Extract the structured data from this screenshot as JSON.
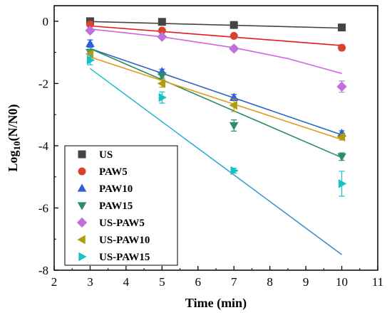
{
  "chart_data": {
    "type": "scatter",
    "title": "",
    "xlabel": "Time (min)",
    "ylabel": "Log10(N/N0)",
    "ylabel_main": "Log",
    "ylabel_sub": "10",
    "ylabel_rest": "(N/N0)",
    "xlim": [
      2,
      11
    ],
    "ylim": [
      -8,
      0.5
    ],
    "xticks": [
      "2",
      "3",
      "4",
      "5",
      "6",
      "7",
      "8",
      "9",
      "10",
      "11"
    ],
    "yticks": [
      "0",
      "-2",
      "-4",
      "-6",
      "-8"
    ],
    "grid": false,
    "legend_position": "bottom-left",
    "series": [
      {
        "name": "US",
        "color": "#444444",
        "marker": "square",
        "x": [
          3,
          5,
          7,
          10
        ],
        "y": [
          0,
          -0.02,
          -0.12,
          -0.2
        ],
        "err": [
          0.04,
          0.04,
          0.05,
          0.05
        ],
        "fit": {
          "x": [
            3,
            10
          ],
          "y": [
            -0.01,
            -0.22
          ]
        }
      },
      {
        "name": "PAW5",
        "color": "#d8422e",
        "marker": "circle",
        "x": [
          3,
          5,
          7,
          10
        ],
        "y": [
          -0.1,
          -0.3,
          -0.47,
          -0.85
        ],
        "err": [
          0.05,
          0.05,
          0.06,
          0.09
        ],
        "fit": {
          "x": [
            3,
            10
          ],
          "y": [
            -0.15,
            -0.78
          ]
        },
        "fit_color": "#e41a1c"
      },
      {
        "name": "PAW10",
        "color": "#2f5fd9",
        "marker": "triangle-up",
        "x": [
          3,
          5,
          7,
          10
        ],
        "y": [
          -0.72,
          -1.62,
          -2.45,
          -3.6
        ],
        "err": [
          0.12,
          0.08,
          0.1,
          0.08
        ],
        "fit": {
          "x": [
            3,
            10
          ],
          "y": [
            -0.88,
            -3.65
          ]
        },
        "fit_color": "#2b63c6"
      },
      {
        "name": "PAW15",
        "color": "#2f8c6b",
        "marker": "triangle-down",
        "x": [
          3,
          5,
          7,
          10
        ],
        "y": [
          -1.0,
          -1.75,
          -3.35,
          -4.35
        ],
        "err": [
          0.1,
          0.08,
          0.18,
          0.12
        ],
        "fit": {
          "x": [
            3,
            10
          ],
          "y": [
            -0.88,
            -4.38
          ]
        },
        "fit_color": "#2e8b57"
      },
      {
        "name": "US-PAW5",
        "color": "#c070dc",
        "marker": "diamond",
        "x": [
          3,
          5,
          7,
          10
        ],
        "y": [
          -0.3,
          -0.5,
          -0.88,
          -2.1
        ],
        "err": [
          0.05,
          0.06,
          0.08,
          0.18
        ],
        "fit": {
          "type": "curve",
          "x": [
            3,
            5,
            7,
            8.5,
            10
          ],
          "y": [
            -0.25,
            -0.5,
            -0.85,
            -1.2,
            -1.68
          ]
        },
        "fit_color": "#cc66dd"
      },
      {
        "name": "US-PAW10",
        "color": "#b09a10",
        "marker": "triangle-left",
        "x": [
          3,
          5,
          7,
          10
        ],
        "y": [
          -1.05,
          -2.0,
          -2.7,
          -3.72
        ],
        "err": [
          0.1,
          0.12,
          0.2,
          0.1
        ],
        "fit": {
          "x": [
            3,
            10
          ],
          "y": [
            -1.15,
            -3.8
          ]
        },
        "fit_color": "#e39b1b"
      },
      {
        "name": "US-PAW15",
        "color": "#18c0c8",
        "marker": "triangle-right",
        "x": [
          3,
          5,
          7,
          10
        ],
        "y": [
          -1.25,
          -2.45,
          -4.8,
          -5.22
        ],
        "err": [
          0.15,
          0.18,
          0.08,
          0.4
        ],
        "fit": {
          "x": [
            3,
            10
          ],
          "y": [
            -1.52,
            -7.5
          ]
        },
        "fit_gradient": [
          "#20c9d1",
          "#4a86c8"
        ]
      }
    ]
  }
}
